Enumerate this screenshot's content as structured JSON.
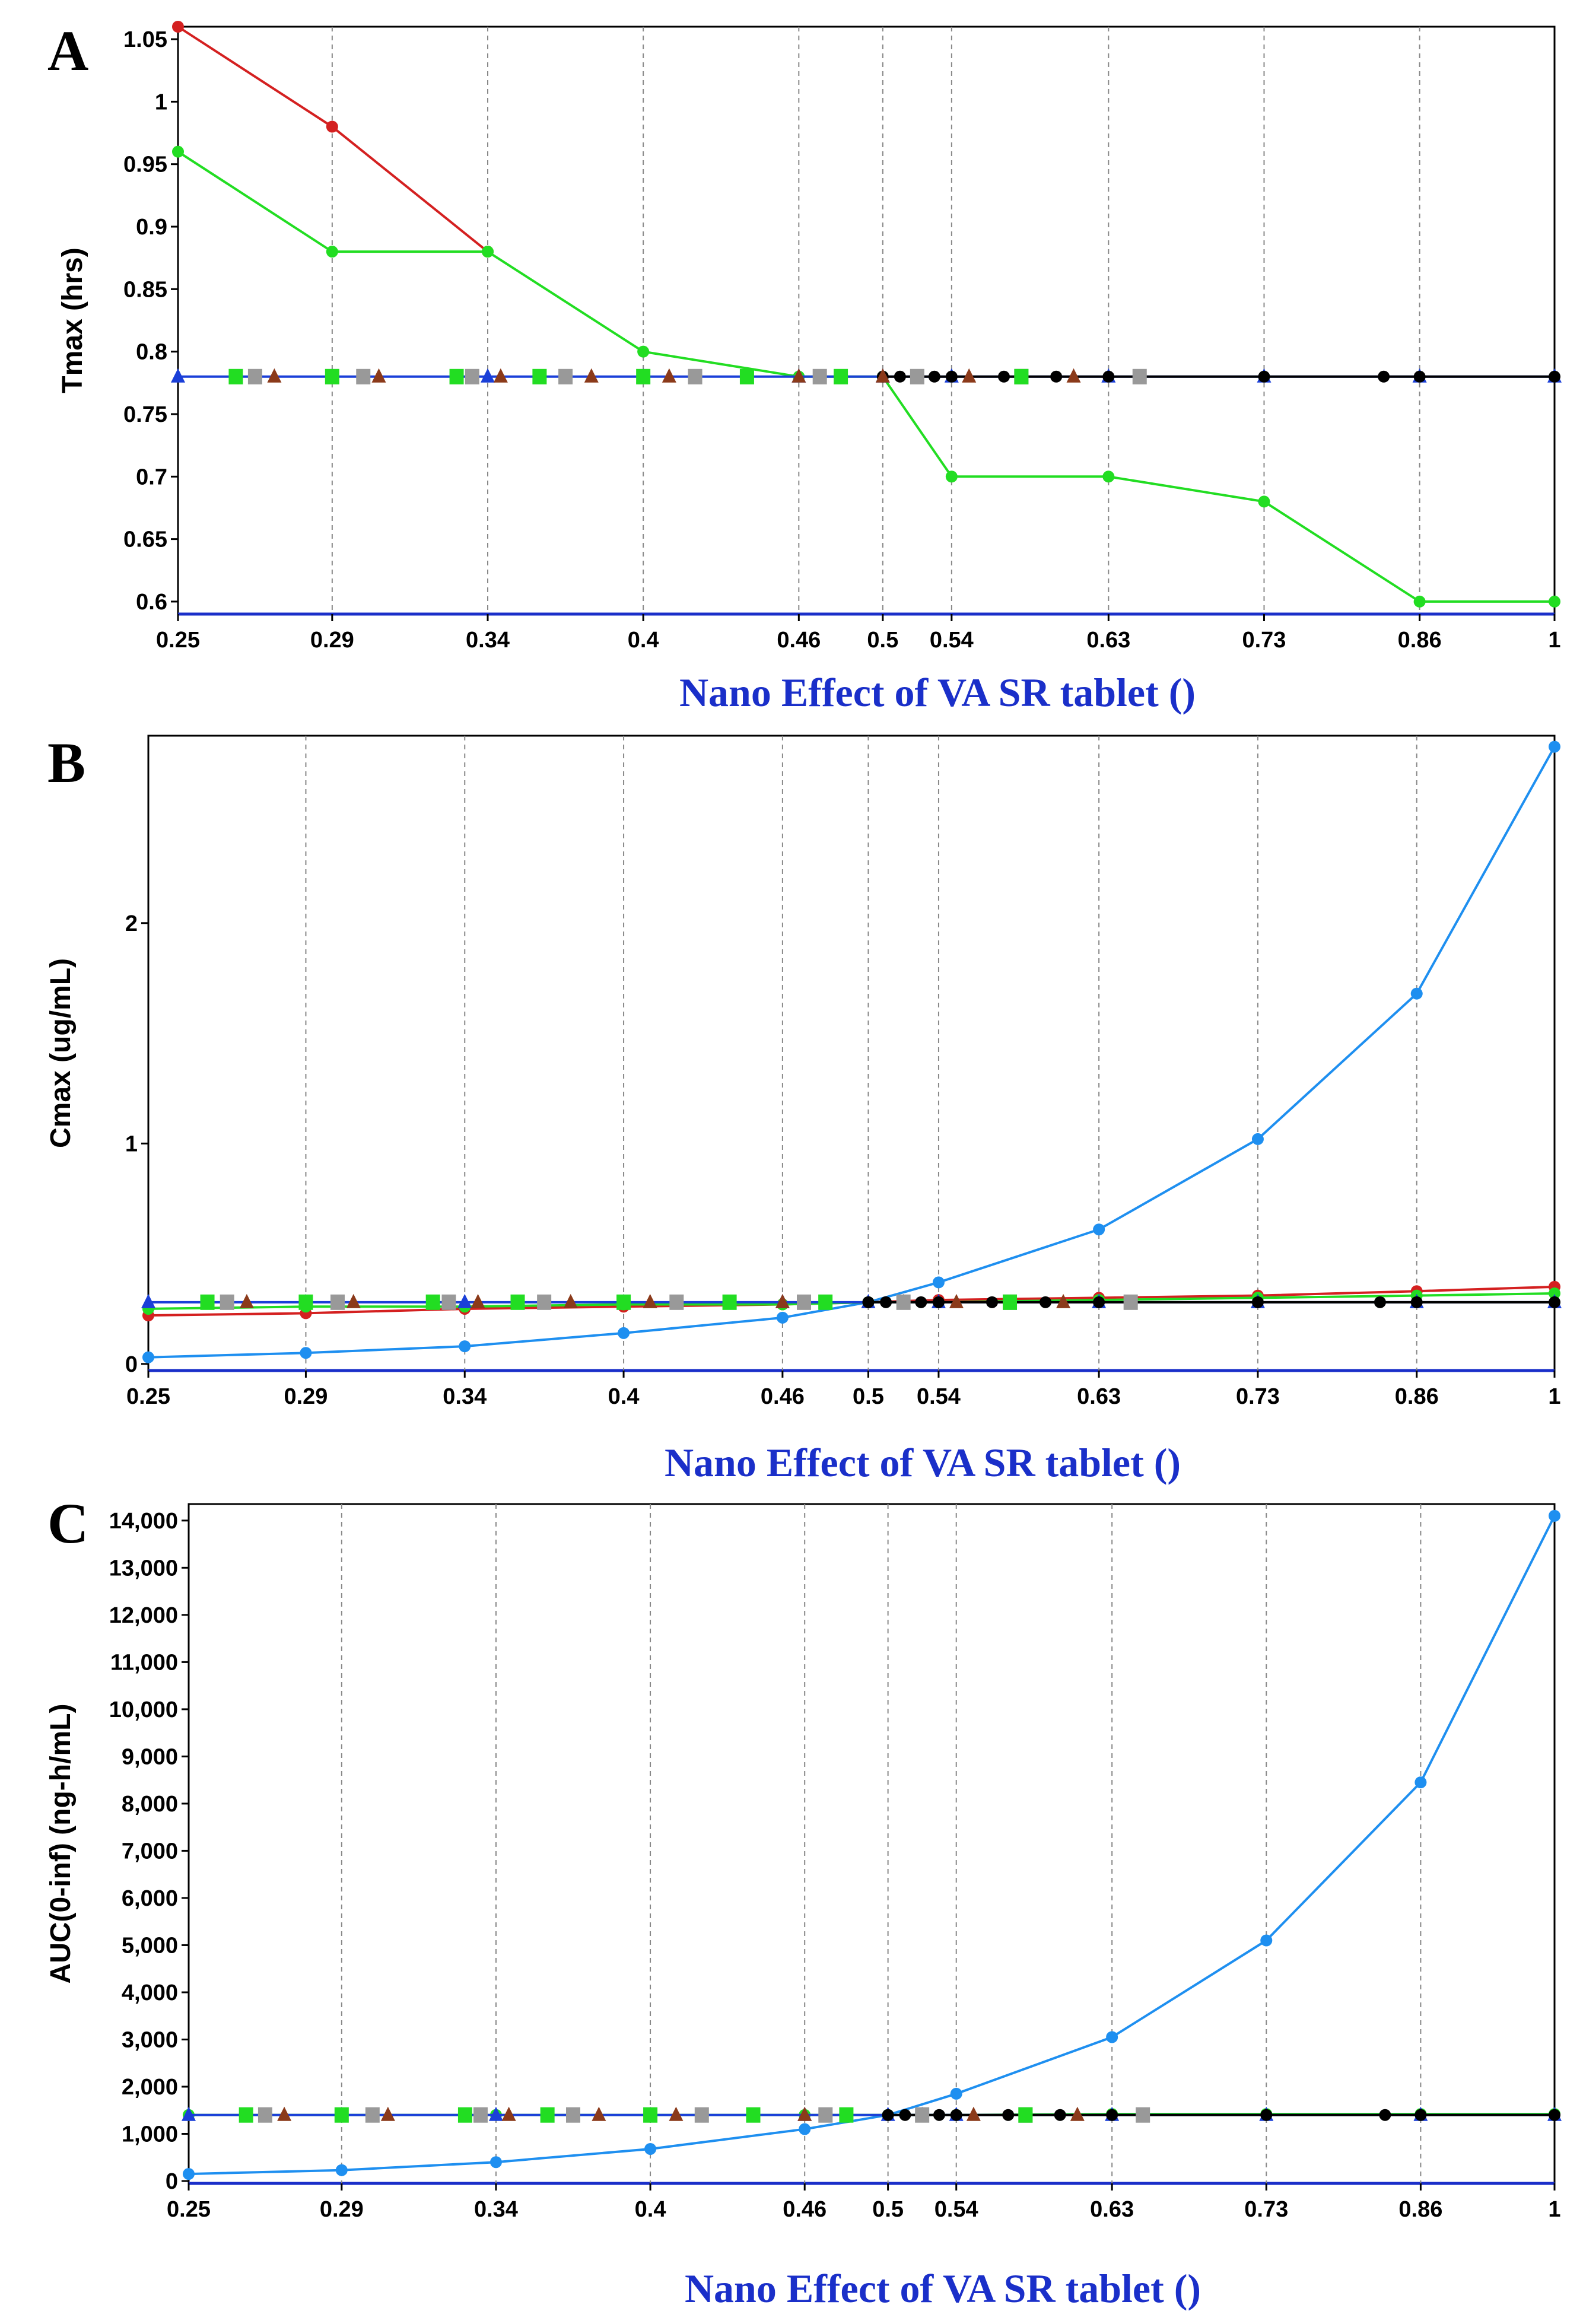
{
  "chart_data": [
    {
      "type": "line",
      "panel_label": "A",
      "xlabel": "Nano Effect of VA SR tablet ()",
      "ylabel": "Tmax (hrs)",
      "x_ticks": [
        "0.25",
        "0.29",
        "0.34",
        "0.4",
        "0.46",
        "0.5",
        "0.54",
        "0.63",
        "0.73",
        "0.86",
        "1"
      ],
      "y_ticks": [
        {
          "value": 0.6,
          "label": "0.6"
        },
        {
          "value": 0.65,
          "label": "0.65"
        },
        {
          "value": 0.7,
          "label": "0.7"
        },
        {
          "value": 0.75,
          "label": "0.75"
        },
        {
          "value": 0.8,
          "label": "0.8"
        },
        {
          "value": 0.85,
          "label": "0.85"
        },
        {
          "value": 0.9,
          "label": "0.9"
        },
        {
          "value": 0.95,
          "label": "0.95"
        },
        {
          "value": 1.0,
          "label": "1"
        },
        {
          "value": 1.05,
          "label": "1.05"
        }
      ],
      "ylim": [
        0.59,
        1.06
      ],
      "x_grid": "dashed vertical",
      "series": [
        {
          "name": "red",
          "color": "#d42020",
          "marker": "circle",
          "x": [
            0.25,
            0.29,
            0.34
          ],
          "y": [
            1.06,
            0.98,
            0.88
          ]
        },
        {
          "name": "green",
          "color": "#22dd22",
          "marker": "circle",
          "x": [
            0.25,
            0.29,
            0.34,
            0.4,
            0.46,
            0.5,
            0.54,
            0.63,
            0.73,
            0.86,
            1.0
          ],
          "y": [
            0.96,
            0.88,
            0.88,
            0.8,
            0.78,
            0.78,
            0.7,
            0.7,
            0.68,
            0.6,
            0.6
          ]
        },
        {
          "name": "blue",
          "color": "#1a3fd8",
          "marker": "triangle",
          "x": [
            0.25,
            0.29,
            0.34,
            0.4,
            0.46,
            0.5,
            0.54,
            0.63,
            0.73,
            0.86,
            1.0
          ],
          "y": [
            0.78,
            0.78,
            0.78,
            0.78,
            0.78,
            0.78,
            0.78,
            0.78,
            0.78,
            0.78,
            0.78
          ]
        },
        {
          "name": "black",
          "color": "#000000",
          "marker": "circle",
          "x": [
            0.5,
            0.51,
            0.53,
            0.54,
            0.57,
            0.6,
            0.63,
            0.65,
            0.73,
            0.83,
            0.86,
            1.0
          ],
          "y": [
            0.78,
            0.78,
            0.78,
            0.78,
            0.78,
            0.78,
            0.78,
            0.78,
            0.78,
            0.78,
            0.78,
            0.78
          ]
        },
        {
          "name": "brown",
          "color": "#8b3a1a",
          "marker": "triangle",
          "line": false,
          "x": [
            0.275,
            0.305,
            0.345,
            0.38,
            0.41,
            0.46,
            0.5,
            0.55,
            0.61
          ],
          "y": [
            0.78,
            0.78,
            0.78,
            0.78,
            0.78,
            0.78,
            0.78,
            0.78,
            0.78
          ]
        },
        {
          "name": "gray",
          "color": "#999999",
          "marker": "square",
          "line": false,
          "x": [
            0.27,
            0.3,
            0.335,
            0.37,
            0.42,
            0.47,
            0.52,
            0.58,
            0.65
          ],
          "y": [
            0.78,
            0.78,
            0.78,
            0.78,
            0.78,
            0.78,
            0.78,
            0.78,
            0.78
          ]
        },
        {
          "name": "green squares",
          "color": "#22dd22",
          "marker": "square",
          "line": false,
          "x": [
            0.265,
            0.29,
            0.33,
            0.36,
            0.4,
            0.44,
            0.48,
            0.58
          ],
          "y": [
            0.78,
            0.78,
            0.78,
            0.78,
            0.78,
            0.78,
            0.78,
            0.78
          ]
        }
      ]
    },
    {
      "type": "line",
      "panel_label": "B",
      "xlabel": "Nano Effect of VA SR tablet ()",
      "ylabel": "Cmax (ug/mL)",
      "x_ticks": [
        "0.25",
        "0.29",
        "0.34",
        "0.4",
        "0.46",
        "0.5",
        "0.54",
        "0.63",
        "0.73",
        "0.86",
        "1"
      ],
      "y_ticks": [
        {
          "value": 0,
          "label": "0"
        },
        {
          "value": 1,
          "label": "1"
        },
        {
          "value": 2,
          "label": "2"
        }
      ],
      "ylim": [
        -0.03,
        2.85
      ],
      "x_grid": "dashed vertical",
      "series": [
        {
          "name": "light blue",
          "color": "#1e8ff0",
          "marker": "circle",
          "x": [
            0.25,
            0.29,
            0.34,
            0.4,
            0.46,
            0.5,
            0.54,
            0.63,
            0.73,
            0.86,
            1.0
          ],
          "y": [
            0.03,
            0.05,
            0.08,
            0.14,
            0.21,
            0.28,
            0.37,
            0.61,
            1.02,
            1.68,
            2.8
          ]
        },
        {
          "name": "red",
          "color": "#d42020",
          "marker": "circle",
          "x": [
            0.25,
            0.29,
            0.34,
            0.4,
            0.46,
            0.5,
            0.54,
            0.63,
            0.73,
            0.86,
            1.0
          ],
          "y": [
            0.22,
            0.23,
            0.25,
            0.26,
            0.27,
            0.28,
            0.29,
            0.3,
            0.31,
            0.33,
            0.35
          ]
        },
        {
          "name": "green",
          "color": "#22dd22",
          "marker": "circle",
          "x": [
            0.25,
            0.29,
            0.34,
            0.4,
            0.46,
            0.5,
            0.54,
            0.63,
            0.73,
            0.86,
            1.0
          ],
          "y": [
            0.25,
            0.26,
            0.26,
            0.27,
            0.27,
            0.28,
            0.28,
            0.29,
            0.3,
            0.31,
            0.32
          ]
        },
        {
          "name": "blue",
          "color": "#1a3fd8",
          "marker": "triangle",
          "x": [
            0.25,
            0.29,
            0.34,
            0.4,
            0.46,
            0.5,
            0.54,
            0.63,
            0.73,
            0.86,
            1.0
          ],
          "y": [
            0.28,
            0.28,
            0.28,
            0.28,
            0.28,
            0.28,
            0.28,
            0.28,
            0.28,
            0.28,
            0.28
          ]
        },
        {
          "name": "black",
          "color": "#000000",
          "marker": "circle",
          "x": [
            0.5,
            0.51,
            0.53,
            0.54,
            0.57,
            0.6,
            0.63,
            0.65,
            0.73,
            0.83,
            0.86,
            1.0
          ],
          "y": [
            0.28,
            0.28,
            0.28,
            0.28,
            0.28,
            0.28,
            0.28,
            0.28,
            0.28,
            0.28,
            0.28,
            0.28
          ]
        },
        {
          "name": "brown",
          "color": "#8b3a1a",
          "marker": "triangle",
          "line": false,
          "x": [
            0.275,
            0.305,
            0.345,
            0.38,
            0.41,
            0.46,
            0.52,
            0.55,
            0.61
          ],
          "y": [
            0.28,
            0.28,
            0.28,
            0.28,
            0.28,
            0.28,
            0.28,
            0.28,
            0.28
          ]
        },
        {
          "name": "gray",
          "color": "#999999",
          "marker": "square",
          "line": false,
          "x": [
            0.27,
            0.3,
            0.335,
            0.37,
            0.42,
            0.47,
            0.52,
            0.58,
            0.65
          ],
          "y": [
            0.28,
            0.28,
            0.28,
            0.28,
            0.28,
            0.28,
            0.28,
            0.28,
            0.28
          ]
        },
        {
          "name": "green squares",
          "color": "#22dd22",
          "marker": "square",
          "line": false,
          "x": [
            0.265,
            0.29,
            0.33,
            0.36,
            0.4,
            0.44,
            0.48,
            0.58
          ],
          "y": [
            0.28,
            0.28,
            0.28,
            0.28,
            0.28,
            0.28,
            0.28,
            0.28
          ]
        }
      ]
    },
    {
      "type": "line",
      "panel_label": "C",
      "xlabel": "Nano Effect of VA SR tablet ()",
      "ylabel": "AUC(0-inf) (ng-h/mL)",
      "x_ticks": [
        "0.25",
        "0.29",
        "0.34",
        "0.4",
        "0.46",
        "0.5",
        "0.54",
        "0.63",
        "0.73",
        "0.86",
        "1"
      ],
      "y_ticks": [
        {
          "value": 0,
          "label": "0"
        },
        {
          "value": 1000,
          "label": "1,000"
        },
        {
          "value": 2000,
          "label": "2,000"
        },
        {
          "value": 3000,
          "label": "3,000"
        },
        {
          "value": 4000,
          "label": "4,000"
        },
        {
          "value": 5000,
          "label": "5,000"
        },
        {
          "value": 6000,
          "label": "6,000"
        },
        {
          "value": 7000,
          "label": "7,000"
        },
        {
          "value": 8000,
          "label": "8,000"
        },
        {
          "value": 9000,
          "label": "9,000"
        },
        {
          "value": 10000,
          "label": "10,000"
        },
        {
          "value": 11000,
          "label": "11,000"
        },
        {
          "value": 12000,
          "label": "12,000"
        },
        {
          "value": 13000,
          "label": "13,000"
        },
        {
          "value": 14000,
          "label": "14,000"
        }
      ],
      "ylim": [
        -50,
        14350
      ],
      "x_grid": "dashed vertical",
      "series": [
        {
          "name": "light blue",
          "color": "#1e8ff0",
          "marker": "circle",
          "x": [
            0.25,
            0.29,
            0.34,
            0.4,
            0.46,
            0.5,
            0.54,
            0.63,
            0.73,
            0.86,
            1.0
          ],
          "y": [
            150,
            230,
            400,
            680,
            1100,
            1400,
            1850,
            3050,
            5100,
            8450,
            14100
          ]
        },
        {
          "name": "green",
          "color": "#22dd22",
          "marker": "circle",
          "x": [
            0.25,
            0.29,
            0.34,
            0.4,
            0.46,
            0.5,
            0.54,
            0.63,
            0.73,
            0.86,
            1.0
          ],
          "y": [
            1400,
            1400,
            1400,
            1400,
            1400,
            1400,
            1400,
            1420,
            1420,
            1420,
            1420
          ]
        },
        {
          "name": "blue",
          "color": "#1a3fd8",
          "marker": "triangle",
          "x": [
            0.25,
            0.29,
            0.34,
            0.4,
            0.46,
            0.5,
            0.54,
            0.63,
            0.73,
            0.86,
            1.0
          ],
          "y": [
            1400,
            1400,
            1400,
            1400,
            1400,
            1400,
            1400,
            1400,
            1400,
            1400,
            1400
          ]
        },
        {
          "name": "black",
          "color": "#000000",
          "marker": "circle",
          "x": [
            0.5,
            0.51,
            0.53,
            0.54,
            0.57,
            0.6,
            0.63,
            0.65,
            0.73,
            0.83,
            0.86,
            1.0
          ],
          "y": [
            1400,
            1400,
            1400,
            1400,
            1400,
            1400,
            1400,
            1400,
            1400,
            1400,
            1400,
            1400
          ]
        },
        {
          "name": "brown",
          "color": "#8b3a1a",
          "marker": "triangle",
          "line": false,
          "x": [
            0.275,
            0.305,
            0.345,
            0.38,
            0.41,
            0.46,
            0.52,
            0.55,
            0.61
          ],
          "y": [
            1400,
            1400,
            1400,
            1400,
            1400,
            1400,
            1400,
            1400,
            1400
          ]
        },
        {
          "name": "gray",
          "color": "#999999",
          "marker": "square",
          "line": false,
          "x": [
            0.27,
            0.3,
            0.335,
            0.37,
            0.42,
            0.47,
            0.52,
            0.58,
            0.65
          ],
          "y": [
            1400,
            1400,
            1400,
            1400,
            1400,
            1400,
            1400,
            1400,
            1400
          ]
        },
        {
          "name": "green squares",
          "color": "#22dd22",
          "marker": "square",
          "line": false,
          "x": [
            0.265,
            0.29,
            0.33,
            0.36,
            0.4,
            0.44,
            0.48,
            0.58
          ],
          "y": [
            1400,
            1400,
            1400,
            1400,
            1400,
            1400,
            1400,
            1400
          ]
        }
      ]
    }
  ]
}
